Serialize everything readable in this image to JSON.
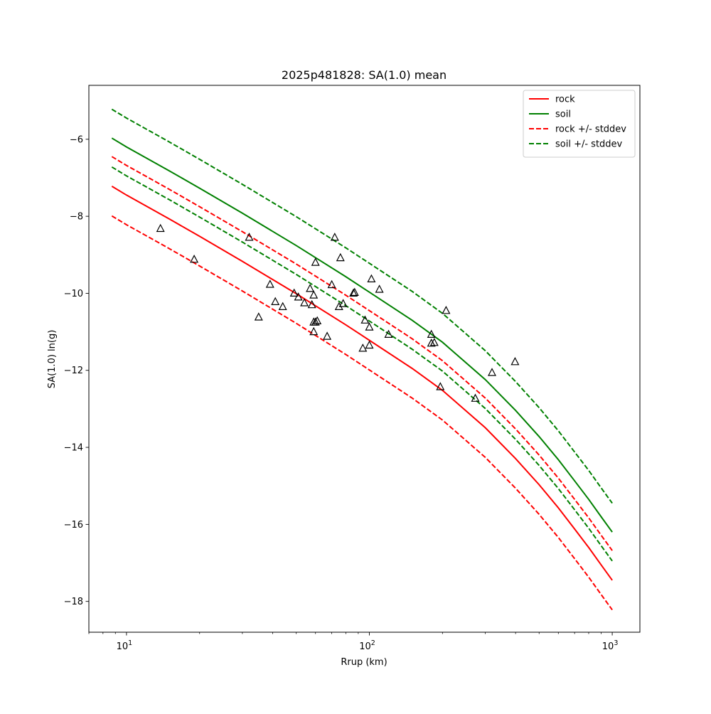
{
  "chart_data": {
    "type": "line",
    "title": "2025p481828: SA(1.0) mean",
    "xlabel": "Rrup (km)",
    "ylabel": "SA(1.0) ln(g)",
    "xscale": "log",
    "xlim": [
      7.0,
      1300
    ],
    "ylim": [
      -18.8,
      -4.6
    ],
    "grid": false,
    "legend_position": "top-right",
    "x_ticks": [
      {
        "value": 10,
        "base": "10",
        "exp": "1"
      },
      {
        "value": 100,
        "base": "10",
        "exp": "2"
      },
      {
        "value": 1000,
        "base": "10",
        "exp": "3"
      }
    ],
    "y_ticks": [
      {
        "value": -6,
        "label": "−6"
      },
      {
        "value": -8,
        "label": "−8"
      },
      {
        "value": -10,
        "label": "−10"
      },
      {
        "value": -12,
        "label": "−12"
      },
      {
        "value": -14,
        "label": "−14"
      },
      {
        "value": -16,
        "label": "−16"
      },
      {
        "value": -18,
        "label": "−18"
      }
    ],
    "x": [
      8.7,
      10,
      15,
      20,
      30,
      50,
      80,
      100,
      150,
      200,
      300,
      400,
      500,
      600,
      700,
      800,
      900,
      1000
    ],
    "series": [
      {
        "name": "rock",
        "color": "#ff0000",
        "dash": "solid",
        "values": [
          -7.22,
          -7.45,
          -8.07,
          -8.52,
          -9.17,
          -10.01,
          -10.82,
          -11.22,
          -11.95,
          -12.52,
          -13.49,
          -14.29,
          -14.97,
          -15.57,
          -16.12,
          -16.6,
          -17.05,
          -17.45
        ]
      },
      {
        "name": "soil",
        "color": "#008000",
        "dash": "solid",
        "values": [
          -5.97,
          -6.2,
          -6.82,
          -7.27,
          -7.92,
          -8.76,
          -9.57,
          -9.97,
          -10.7,
          -11.27,
          -12.24,
          -13.04,
          -13.72,
          -14.32,
          -14.87,
          -15.35,
          -15.8,
          -16.2
        ]
      },
      {
        "name": "rock +/- stddev",
        "color": "#ff0000",
        "dash": "dashed",
        "values": [
          -6.45,
          -6.68,
          -7.3,
          -7.75,
          -8.4,
          -9.24,
          -10.05,
          -10.45,
          -11.18,
          -11.75,
          -12.72,
          -13.52,
          -14.2,
          -14.8,
          -15.35,
          -15.83,
          -16.28,
          -16.68
        ]
      },
      {
        "name": "rock +/- stddev",
        "color": "#ff0000",
        "dash": "dashed",
        "legend": false,
        "values": [
          -7.99,
          -8.22,
          -8.84,
          -9.29,
          -9.94,
          -10.78,
          -11.59,
          -11.99,
          -12.72,
          -13.29,
          -14.26,
          -15.06,
          -15.74,
          -16.34,
          -16.89,
          -17.37,
          -17.82,
          -18.22
        ]
      },
      {
        "name": "soil +/- stddev",
        "color": "#008000",
        "dash": "dashed",
        "values": [
          -5.22,
          -5.45,
          -6.07,
          -6.52,
          -7.17,
          -8.01,
          -8.82,
          -9.22,
          -9.95,
          -10.52,
          -11.49,
          -12.29,
          -12.97,
          -13.57,
          -14.12,
          -14.6,
          -15.05,
          -15.45
        ]
      },
      {
        "name": "soil +/- stddev",
        "color": "#008000",
        "dash": "dashed",
        "legend": false,
        "values": [
          -6.72,
          -6.95,
          -7.57,
          -8.02,
          -8.67,
          -9.51,
          -10.32,
          -10.72,
          -11.45,
          -12.02,
          -12.99,
          -13.79,
          -14.47,
          -15.07,
          -15.62,
          -16.1,
          -16.55,
          -16.95
        ]
      }
    ],
    "observations": {
      "marker": "triangle-open",
      "color": "#000000",
      "points": [
        [
          13.8,
          -8.32
        ],
        [
          19.0,
          -9.12
        ],
        [
          32,
          -8.55
        ],
        [
          35,
          -10.62
        ],
        [
          39,
          -9.77
        ],
        [
          41,
          -10.22
        ],
        [
          44,
          -10.35
        ],
        [
          49,
          -10.0
        ],
        [
          51,
          -10.1
        ],
        [
          54,
          -10.25
        ],
        [
          57,
          -9.88
        ],
        [
          58,
          -10.3
        ],
        [
          59,
          -10.75
        ],
        [
          59,
          -11.0
        ],
        [
          59,
          -10.05
        ],
        [
          60,
          -9.2
        ],
        [
          60,
          -10.75
        ],
        [
          61,
          -10.72
        ],
        [
          67,
          -11.12
        ],
        [
          70,
          -9.78
        ],
        [
          72,
          -8.55
        ],
        [
          75,
          -10.35
        ],
        [
          76,
          -9.08
        ],
        [
          78,
          -10.27
        ],
        [
          86,
          -10.0
        ],
        [
          87,
          -9.98
        ],
        [
          94,
          -11.43
        ],
        [
          96,
          -10.7
        ],
        [
          100,
          -10.88
        ],
        [
          100,
          -11.35
        ],
        [
          102,
          -9.63
        ],
        [
          110,
          -9.9
        ],
        [
          120,
          -11.07
        ],
        [
          180,
          -11.07
        ],
        [
          180,
          -11.3
        ],
        [
          185,
          -11.28
        ],
        [
          196,
          -12.43
        ],
        [
          207,
          -10.45
        ],
        [
          273,
          -12.73
        ],
        [
          320,
          -12.06
        ],
        [
          398,
          -11.78
        ]
      ]
    }
  }
}
